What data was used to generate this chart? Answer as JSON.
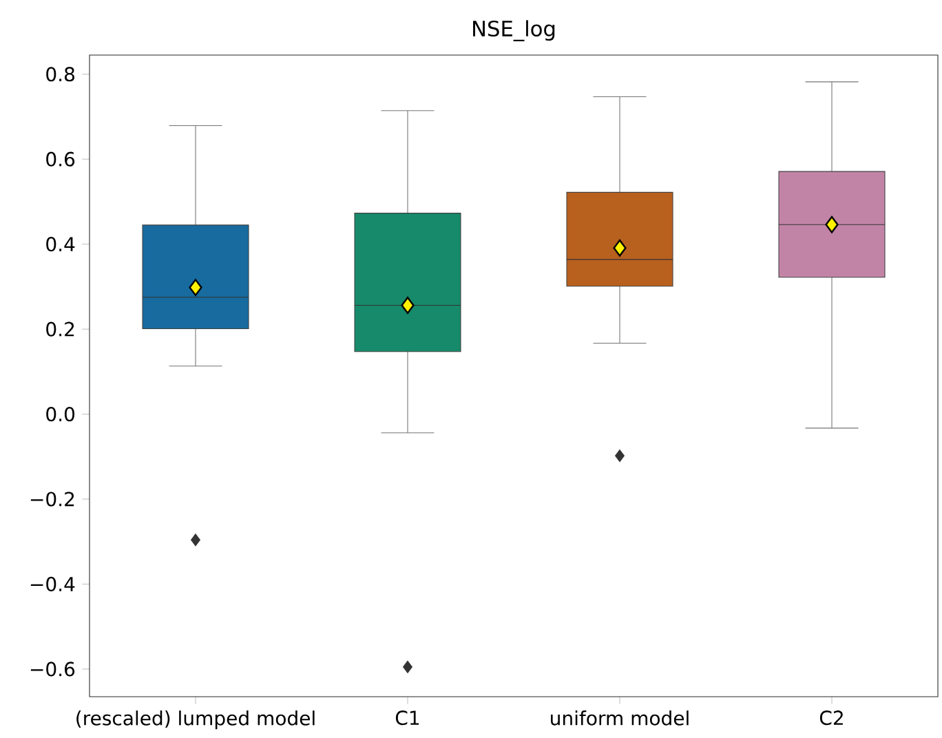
{
  "chart_data": {
    "type": "box",
    "title": "NSE_log",
    "categories": [
      "(rescaled) lumped model",
      "C1",
      "uniform model",
      "C2"
    ],
    "colors": [
      "#176b9e",
      "#168a6a",
      "#b8601e",
      "#c284a6"
    ],
    "boxes": [
      {
        "low": 0.113,
        "q1": 0.201,
        "median": 0.275,
        "q3": 0.445,
        "high": 0.679,
        "mean": 0.298,
        "outliers": [
          -0.296
        ]
      },
      {
        "low": -0.044,
        "q1": 0.147,
        "median": 0.256,
        "q3": 0.473,
        "high": 0.714,
        "mean": 0.256,
        "outliers": [
          -0.595
        ]
      },
      {
        "low": 0.167,
        "q1": 0.301,
        "median": 0.364,
        "q3": 0.522,
        "high": 0.747,
        "mean": 0.391,
        "outliers": [
          -0.098
        ]
      },
      {
        "low": -0.033,
        "q1": 0.322,
        "median": 0.446,
        "q3": 0.571,
        "high": 0.782,
        "mean": 0.446
      }
    ],
    "ylim": [
      -0.665,
      0.845
    ],
    "yticks": [
      {
        "value": -0.6,
        "label": "−0.6"
      },
      {
        "value": -0.4,
        "label": "−0.4"
      },
      {
        "value": -0.2,
        "label": "−0.2"
      },
      {
        "value": 0.0,
        "label": "0.0"
      },
      {
        "value": 0.2,
        "label": "0.2"
      },
      {
        "value": 0.4,
        "label": "0.4"
      },
      {
        "value": 0.6,
        "label": "0.6"
      },
      {
        "value": 0.8,
        "label": "0.8"
      }
    ]
  }
}
